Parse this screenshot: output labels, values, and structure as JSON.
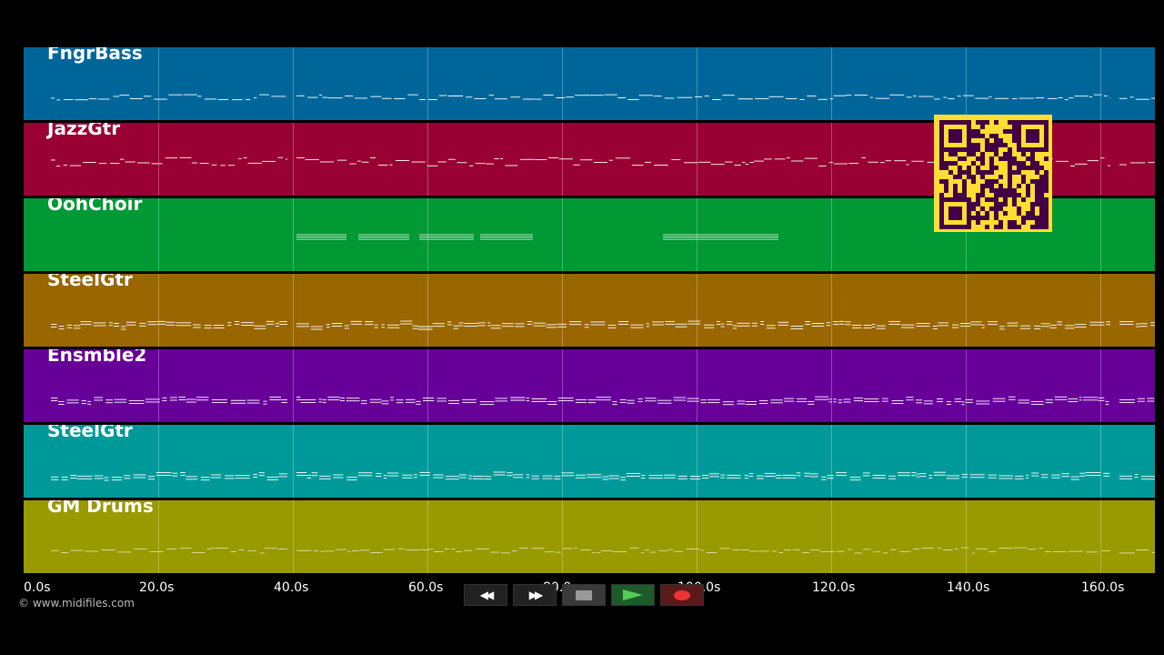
{
  "tracks": [
    {
      "name": "FngrBass",
      "color": "#006699"
    },
    {
      "name": "JazzGtr",
      "color": "#990033"
    },
    {
      "name": "OohChoir",
      "color": "#009933"
    },
    {
      "name": "SteelGtr",
      "color": "#996600"
    },
    {
      "name": "Ensmble2",
      "color": "#660099"
    },
    {
      "name": "SteelGtr",
      "color": "#009999"
    },
    {
      "name": "GM Drums",
      "color": "#999900"
    }
  ],
  "time_axis": {
    "ticks": [
      "0.0s",
      "20.0s",
      "40.0s",
      "60.0s",
      "80.0s",
      "100.0s",
      "120.0s",
      "140.0s",
      "160.0s"
    ]
  },
  "footer": {
    "copyright": "© www.midifiles.com"
  },
  "transport": {
    "buttons": [
      {
        "name": "rewind-button",
        "icon": "rewind-icon",
        "glyph": "◀◀"
      },
      {
        "name": "fast-forward-button",
        "icon": "fast-forward-icon",
        "glyph": "▶▶"
      },
      {
        "name": "stop-button",
        "icon": "stop-icon",
        "glyph": ""
      },
      {
        "name": "play-button",
        "icon": "play-icon",
        "glyph": ""
      },
      {
        "name": "record-button",
        "icon": "record-icon",
        "glyph": ""
      }
    ]
  },
  "qr_code": {
    "icon": "qr-code-icon",
    "color": "#ffdd33",
    "dark": "#440044"
  }
}
